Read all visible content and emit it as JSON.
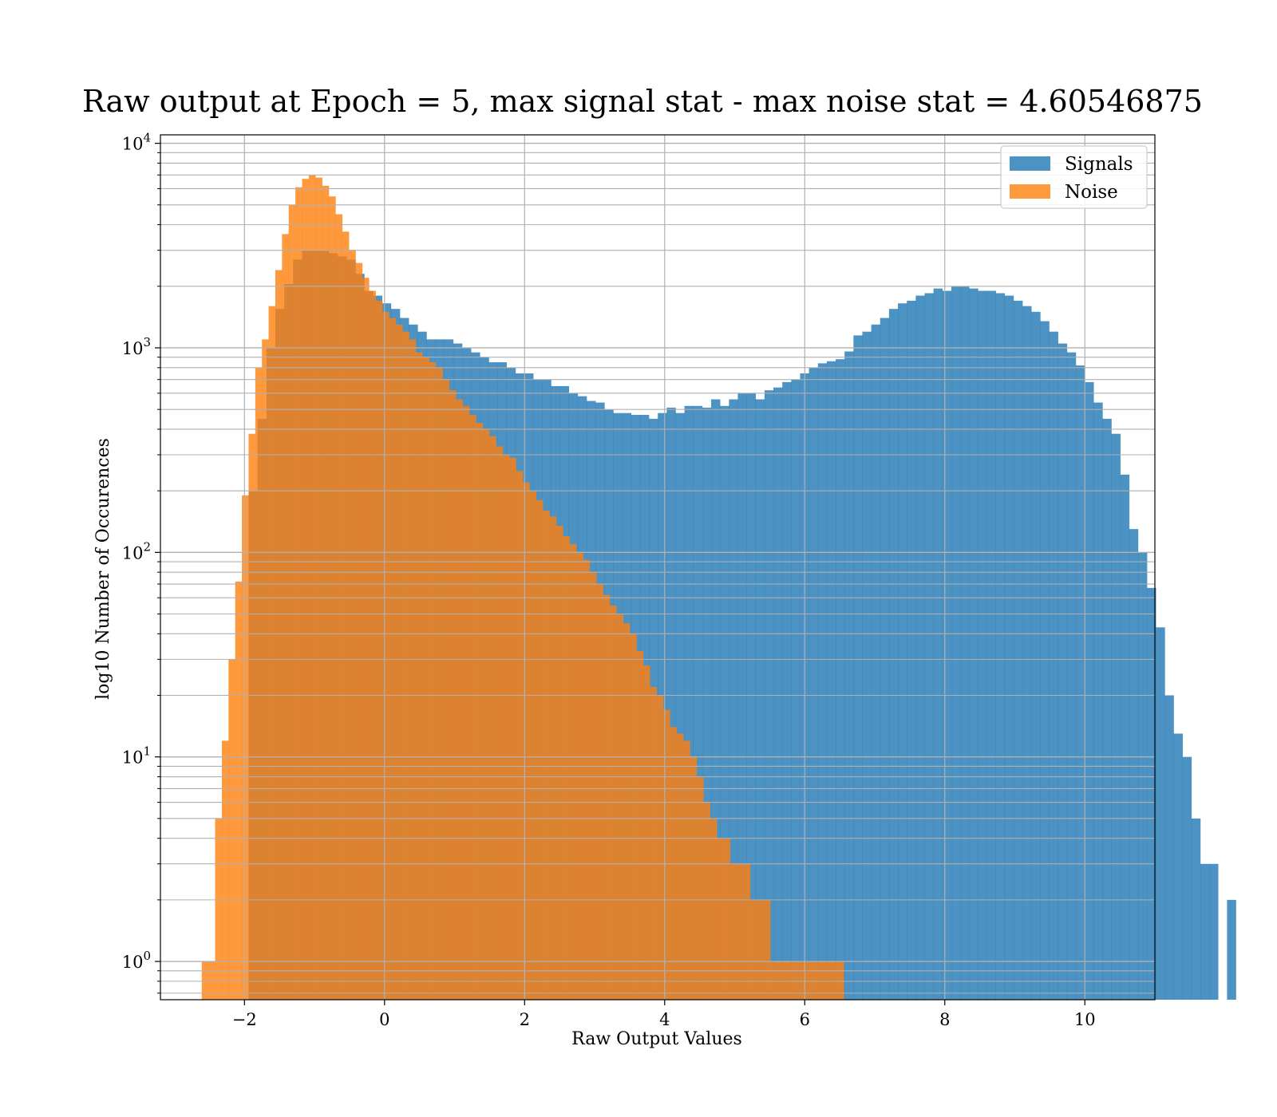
{
  "chart_data": {
    "type": "bar",
    "title": "Raw output at Epoch = 5, max signal stat - max noise stat = 4.60546875",
    "xlabel": "Raw Output Values",
    "ylabel": "log10 Number of Occurences",
    "xlim": [
      -3.2,
      11.0
    ],
    "ylim": [
      0.65,
      11000
    ],
    "yscale": "log",
    "x_ticks": [
      -2,
      0,
      2,
      4,
      6,
      8,
      10
    ],
    "x_tick_labels": [
      "−2",
      "0",
      "2",
      "4",
      "6",
      "8",
      "10"
    ],
    "y_ticks": [
      1,
      10,
      100,
      1000,
      10000
    ],
    "y_tick_labels": [
      {
        "base": "10",
        "exp": "0"
      },
      {
        "base": "10",
        "exp": "1"
      },
      {
        "base": "10",
        "exp": "2"
      },
      {
        "base": "10",
        "exp": "3"
      },
      {
        "base": "10",
        "exp": "4"
      }
    ],
    "grid": true,
    "legend_position": "top-right",
    "legend": [
      "Signals",
      "Noise"
    ],
    "colors": {
      "signals": "#1f77b4",
      "noise": "#ff7f0e"
    },
    "alpha": 0.8,
    "series": [
      {
        "name": "Signals",
        "bin_start": -1.94,
        "bin_width": 0.127,
        "values": [
          200,
          450,
          1000,
          1550,
          2050,
          2700,
          3000,
          3000,
          3000,
          2900,
          2800,
          2700,
          2300,
          1900,
          1800,
          1650,
          1550,
          1400,
          1300,
          1200,
          1100,
          1100,
          1100,
          1050,
          1000,
          950,
          900,
          850,
          850,
          800,
          750,
          750,
          700,
          700,
          650,
          650,
          600,
          580,
          550,
          540,
          500,
          480,
          480,
          470,
          470,
          450,
          480,
          510,
          480,
          520,
          520,
          510,
          560,
          520,
          560,
          600,
          600,
          560,
          620,
          640,
          680,
          700,
          750,
          800,
          840,
          860,
          880,
          960,
          1150,
          1200,
          1300,
          1400,
          1550,
          1650,
          1700,
          1800,
          1850,
          1950,
          1900,
          2000,
          2000,
          1950,
          1900,
          1900,
          1850,
          1800,
          1700,
          1600,
          1500,
          1350,
          1200,
          1050,
          950,
          820,
          680,
          540,
          450,
          380,
          240,
          130,
          100,
          67,
          43,
          20,
          13,
          10,
          5,
          3,
          3,
          0,
          2
        ]
      },
      {
        "name": "Noise",
        "bin_start": -2.61,
        "bin_width": 0.0955,
        "values": [
          1,
          1,
          5,
          12,
          30,
          72,
          190,
          380,
          800,
          1100,
          1600,
          2400,
          3600,
          5000,
          6100,
          6700,
          7000,
          6800,
          6200,
          5500,
          4500,
          3700,
          3000,
          2600,
          2200,
          1900,
          1700,
          1500,
          1400,
          1300,
          1200,
          1100,
          950,
          900,
          850,
          800,
          700,
          620,
          560,
          520,
          470,
          430,
          400,
          370,
          330,
          300,
          290,
          250,
          220,
          200,
          180,
          160,
          150,
          135,
          120,
          110,
          100,
          92,
          80,
          70,
          62,
          55,
          50,
          45,
          40,
          33,
          28,
          22,
          20,
          17,
          14,
          13,
          12,
          10,
          8,
          6,
          5,
          4,
          4,
          3,
          3,
          3,
          2,
          2,
          2,
          1,
          1,
          1,
          1,
          1,
          1,
          1,
          1,
          1,
          1,
          1
        ]
      }
    ]
  }
}
